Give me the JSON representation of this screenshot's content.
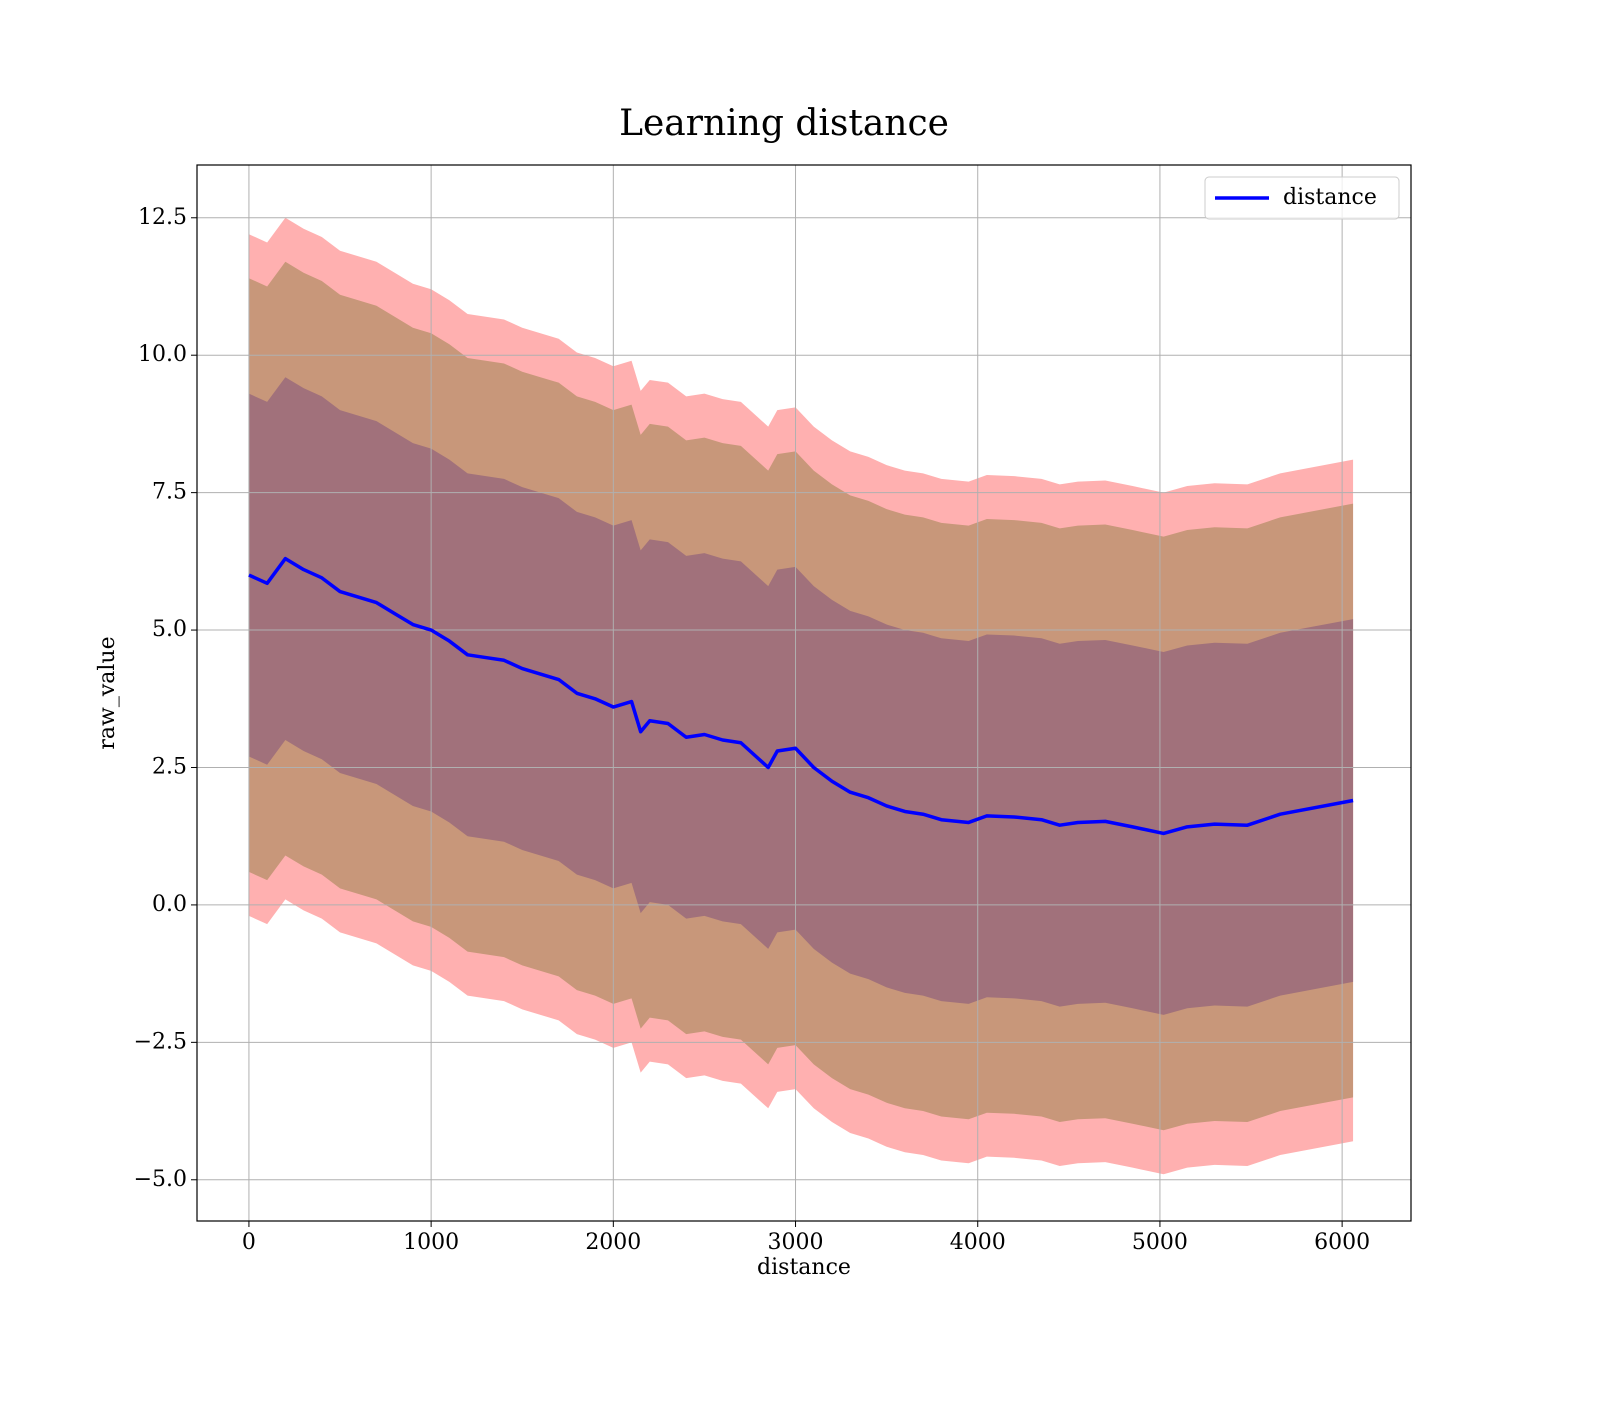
{
  "chart_data": {
    "type": "line",
    "title": "Learning distance",
    "x_label": "distance",
    "y_label": "raw_value",
    "x": [
      0,
      100,
      200,
      300,
      400,
      500,
      600,
      700,
      800,
      900,
      1000,
      1100,
      1200,
      1300,
      1400,
      1500,
      1600,
      1700,
      1800,
      1900,
      2000,
      2100,
      2150,
      2200,
      2300,
      2400,
      2500,
      2600,
      2700,
      2800,
      2850,
      2900,
      3000,
      3100,
      3200,
      3300,
      3400,
      3500,
      3600,
      3700,
      3800,
      3950,
      4050,
      4200,
      4350,
      4450,
      4550,
      4700,
      4850,
      5020,
      5150,
      5300,
      5480,
      5660,
      6060
    ],
    "series": [
      {
        "name": "distance",
        "color": "#0000ff",
        "values": [
          6.0,
          5.85,
          6.3,
          6.1,
          5.95,
          5.7,
          5.6,
          5.5,
          5.3,
          5.1,
          5.0,
          4.8,
          4.55,
          4.5,
          4.45,
          4.3,
          4.2,
          4.1,
          3.85,
          3.75,
          3.6,
          3.7,
          3.15,
          3.35,
          3.3,
          3.05,
          3.1,
          3.0,
          2.95,
          2.65,
          2.5,
          2.8,
          2.85,
          2.5,
          2.25,
          2.05,
          1.95,
          1.8,
          1.7,
          1.65,
          1.55,
          1.5,
          1.62,
          1.6,
          1.55,
          1.45,
          1.5,
          1.52,
          1.42,
          1.3,
          1.42,
          1.47,
          1.45,
          1.65,
          1.9
        ]
      }
    ],
    "bands": [
      {
        "color": "#ffb0b0",
        "halfwidth": 6.2
      },
      {
        "color": "#c8977a",
        "halfwidth": 5.4
      },
      {
        "color": "#a1717b",
        "halfwidth": 3.3
      }
    ],
    "xlim": [
      -285,
      6378
    ],
    "ylim": [
      -5.75,
      13.46
    ],
    "xticks": [
      0,
      1000,
      2000,
      3000,
      4000,
      5000,
      6000
    ],
    "yticks": [
      {
        "value": -5,
        "label": "−5.0"
      },
      {
        "value": -2.5,
        "label": "−2.5"
      },
      {
        "value": 0,
        "label": "0.0"
      },
      2.5,
      {
        "value": 5,
        "label": "5.0"
      },
      7.5,
      {
        "value": 10,
        "label": "10.0"
      },
      12.5
    ],
    "grid": true,
    "legend": "upper right"
  }
}
